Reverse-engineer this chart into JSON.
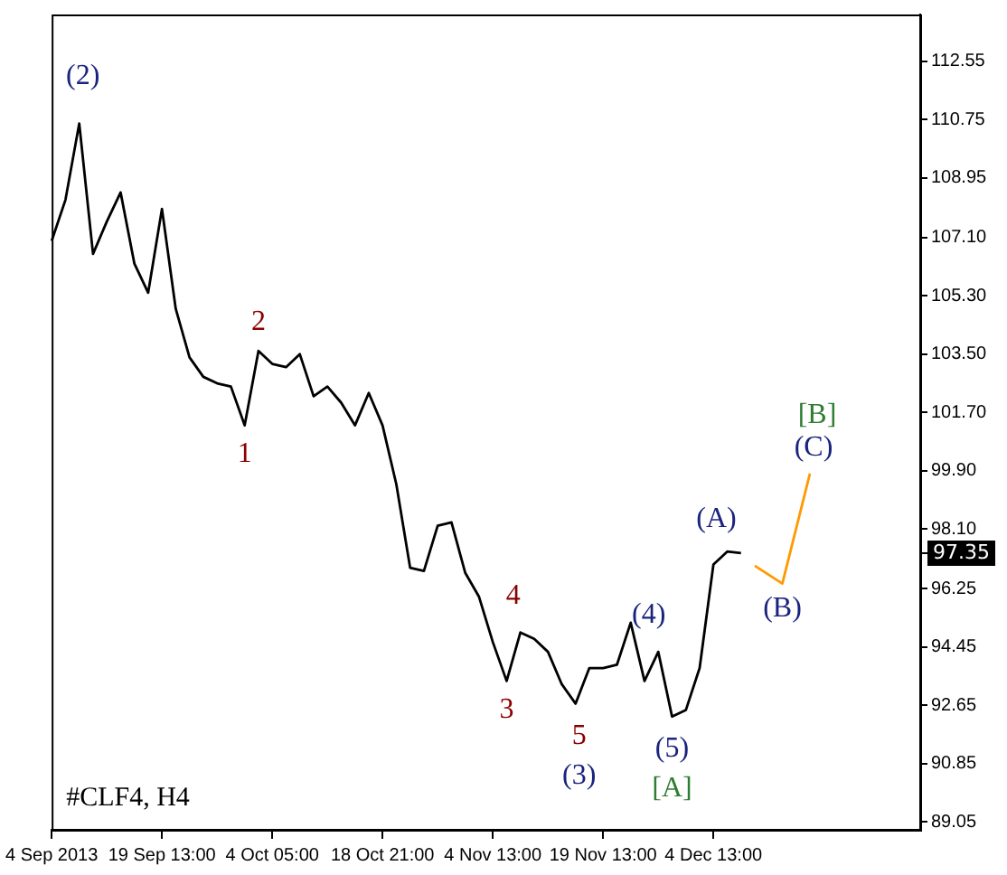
{
  "chart_data": {
    "type": "line",
    "title": "#CLF4, H4",
    "categories": [
      "4 Sep 2013",
      null,
      null,
      null,
      null,
      null,
      null,
      null,
      "19 Sep 13:00",
      null,
      null,
      null,
      null,
      null,
      null,
      null,
      "4 Oct 05:00",
      null,
      null,
      null,
      null,
      null,
      null,
      null,
      "18 Oct 21:00",
      null,
      null,
      null,
      null,
      null,
      null,
      null,
      "4 Nov 13:00",
      null,
      null,
      null,
      null,
      null,
      null,
      null,
      "19 Nov 13:00",
      null,
      null,
      null,
      null,
      null,
      null,
      null,
      "4 Dec 13:00",
      null,
      null,
      null,
      null,
      null,
      null,
      null,
      null,
      null,
      null,
      null,
      null,
      null,
      null,
      null
    ],
    "ylim": [
      88.8,
      114.0
    ],
    "yticks": [
      {
        "value": 89.05,
        "label": "89.05"
      },
      {
        "value": 90.85,
        "label": "90.85"
      },
      {
        "value": 92.65,
        "label": "92.65"
      },
      {
        "value": 94.45,
        "label": "94.45"
      },
      {
        "value": 96.25,
        "label": "96.25"
      },
      {
        "value": 98.1,
        "label": "98.10"
      },
      {
        "value": 99.9,
        "label": "99.90"
      },
      {
        "value": 101.7,
        "label": "101.70"
      },
      {
        "value": 103.5,
        "label": "103.50"
      },
      {
        "value": 105.3,
        "label": "105.30"
      },
      {
        "value": 107.1,
        "label": "107.10"
      },
      {
        "value": 108.95,
        "label": "108.95"
      },
      {
        "value": 110.75,
        "label": "110.75"
      },
      {
        "value": 112.55,
        "label": "112.55"
      }
    ],
    "grid": false,
    "legend": false,
    "marker": "none",
    "line_style": "solid",
    "series": [
      {
        "color": "#000000",
        "values": [
          107.0,
          108.27,
          110.63,
          106.6,
          107.6,
          108.5,
          106.3,
          105.4,
          107.99,
          104.9,
          103.4,
          102.8,
          102.6,
          102.5,
          101.3,
          103.6,
          103.2,
          103.1,
          103.5,
          102.2,
          102.5,
          102.0,
          101.3,
          102.3,
          101.3,
          99.48,
          96.9,
          96.8,
          98.2,
          98.3,
          96.74,
          96.0,
          94.6,
          93.4,
          94.9,
          94.7,
          94.3,
          93.3,
          92.7,
          93.8,
          93.8,
          93.9,
          95.2,
          93.4,
          94.3,
          92.3,
          92.5,
          93.8,
          97.0,
          97.4,
          97.35,
          null,
          null,
          null,
          null,
          null,
          null,
          null,
          null,
          null,
          null,
          null,
          null,
          null
        ]
      },
      {
        "color": "#ff9900",
        "values": [
          null,
          null,
          null,
          null,
          null,
          null,
          null,
          null,
          null,
          null,
          null,
          null,
          null,
          null,
          null,
          null,
          null,
          null,
          null,
          null,
          null,
          null,
          null,
          null,
          null,
          null,
          null,
          null,
          null,
          null,
          null,
          null,
          null,
          null,
          null,
          null,
          null,
          null,
          null,
          null,
          null,
          null,
          null,
          null,
          null,
          null,
          null,
          null,
          null,
          null,
          null,
          96.96,
          null,
          96.41,
          null,
          99.81,
          null,
          null,
          null,
          null,
          null,
          null,
          null,
          null
        ]
      }
    ],
    "annotations": [
      "(2)",
      "2",
      "1",
      "4",
      "3",
      "5",
      "(3)",
      "(4)",
      "(5)",
      "[A]",
      "(A)",
      "(B)",
      "(C)",
      "[B]",
      "97.35"
    ]
  }
}
